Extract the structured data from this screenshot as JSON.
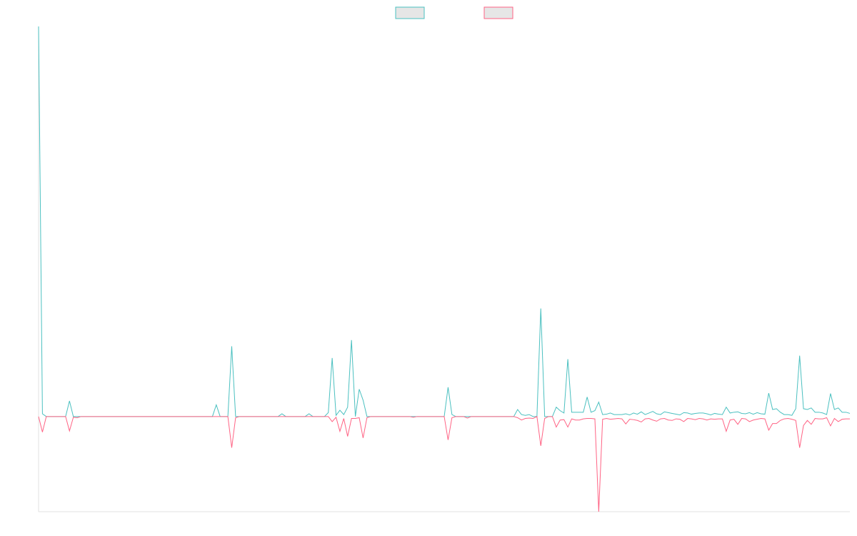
{
  "chart_data": {
    "type": "line",
    "ylim": [
      -24.4,
      100
    ],
    "legend": "top",
    "series": [
      {
        "color": "#4bc0c0",
        "values": [
          100,
          0.7,
          0,
          0,
          0,
          0,
          0,
          0,
          4,
          0,
          0,
          0,
          0,
          0,
          0,
          0,
          0,
          0,
          0,
          0,
          0,
          0,
          0,
          0,
          0,
          0,
          0,
          0,
          0,
          0,
          0,
          0,
          0,
          0,
          0,
          0,
          0,
          0,
          0,
          0,
          0,
          0,
          0,
          0,
          0,
          0,
          3,
          0,
          0,
          0,
          18,
          0,
          0,
          0,
          0,
          0,
          0,
          0,
          0,
          0,
          0,
          0,
          0,
          0.7,
          0,
          0,
          0,
          0,
          0,
          0,
          0.7,
          0,
          0,
          0,
          0,
          1,
          15,
          0.3,
          1.6,
          0.5,
          2.4,
          19.6,
          0,
          7,
          4.2,
          0,
          0,
          0,
          0,
          0,
          0,
          0,
          0,
          0,
          0,
          0,
          0,
          0,
          0,
          0,
          0,
          0,
          0,
          0,
          0,
          0,
          7.5,
          0.5,
          0,
          0,
          0,
          0,
          0,
          0,
          0,
          0,
          0,
          0,
          0,
          0,
          0,
          0,
          0,
          0,
          1.8,
          0.5,
          0.3,
          0.5,
          0,
          0,
          27.7,
          0,
          0,
          0,
          2.4,
          1.5,
          0.9,
          14.7,
          1.1,
          1.1,
          1.1,
          1.1,
          5,
          1.1,
          1.5,
          3.7,
          0.5,
          0.6,
          0.9,
          0.5,
          0.5,
          0.5,
          0.7,
          0.4,
          0.9,
          0.6,
          1.2,
          0.5,
          0.9,
          1.3,
          0.7,
          0.5,
          1.2,
          1.0,
          0.8,
          0.6,
          0.4,
          1.0,
          0.9,
          0.6,
          0.8,
          0.9,
          0.9,
          0.7,
          0.4,
          0.8,
          0.6,
          0.5,
          2.4,
          0.9,
          1.1,
          1.2,
          0.8,
          0.7,
          1.0,
          0.6,
          1.0,
          0.7,
          0.6,
          6,
          1.8,
          2,
          1.1,
          0.5,
          0.5,
          0.3,
          2,
          15.6,
          2,
          1.8,
          2.2,
          1.1,
          1.1,
          0.9,
          0.5,
          5.9,
          1.8,
          2.2,
          1.1,
          1.1,
          0.8
        ]
      },
      {
        "color": "#ff6384",
        "values": [
          0,
          -4,
          0,
          0,
          0,
          0,
          0,
          0,
          -3.7,
          -0.2,
          -0.3,
          0,
          0,
          0,
          0,
          0,
          0,
          0,
          0,
          0,
          0,
          0,
          0,
          0,
          0,
          0,
          0,
          0,
          0,
          0,
          0,
          0,
          0,
          0,
          0,
          0,
          0,
          0,
          0,
          0,
          0,
          0,
          0,
          0,
          0,
          0,
          0,
          0,
          0,
          0,
          -8,
          -0.3,
          0,
          0,
          0,
          0,
          0,
          0,
          0,
          0,
          0,
          0,
          0,
          0,
          0,
          0,
          0,
          0,
          0,
          0,
          0,
          0,
          0,
          0,
          0,
          0,
          -1.3,
          -0.2,
          -3.8,
          -0.5,
          -5.1,
          -0.5,
          -0.5,
          -0.3,
          -5.5,
          -0.3,
          0,
          0,
          0,
          0,
          0,
          0,
          0,
          0,
          0,
          0,
          0,
          -0.2,
          0,
          0,
          0,
          0,
          0,
          0,
          0,
          0,
          -6,
          -0.3,
          0,
          0,
          0,
          -0.4,
          0,
          0,
          0,
          0,
          0,
          0,
          0,
          0,
          0,
          0,
          0,
          0,
          -0.3,
          -0.9,
          -0.5,
          -0.4,
          -0.5,
          0,
          -7.5,
          -0.5,
          0,
          0,
          -2.7,
          -0.9,
          -0.8,
          -2.7,
          -0.6,
          -0.9,
          -0.9,
          -0.6,
          -0.5,
          -0.5,
          -0.6,
          -24.4,
          -0.7,
          -0.5,
          -0.7,
          -0.6,
          -0.5,
          -0.6,
          -1.9,
          -0.7,
          -0.8,
          -1.0,
          -1.4,
          -0.6,
          -0.5,
          -0.9,
          -1.2,
          -0.6,
          -0.5,
          -0.9,
          -1.0,
          -0.6,
          -0.7,
          -1.3,
          -0.5,
          -0.6,
          -0.8,
          -0.5,
          -0.6,
          -0.9,
          -0.6,
          -0.7,
          -0.6,
          -0.6,
          -3.8,
          -0.9,
          -0.7,
          -2,
          -0.5,
          -0.6,
          -1.3,
          -0.9,
          -0.7,
          -0.5,
          -0.6,
          -3.5,
          -1.8,
          -1.8,
          -1,
          -0.6,
          -0.5,
          -0.7,
          -1,
          -8,
          -2.3,
          -1,
          -2,
          -0.5,
          -0.6,
          -0.6,
          -0.3,
          -2.4,
          -0.5,
          -1.3,
          -0.7,
          -0.6,
          -0.6
        ]
      }
    ]
  }
}
